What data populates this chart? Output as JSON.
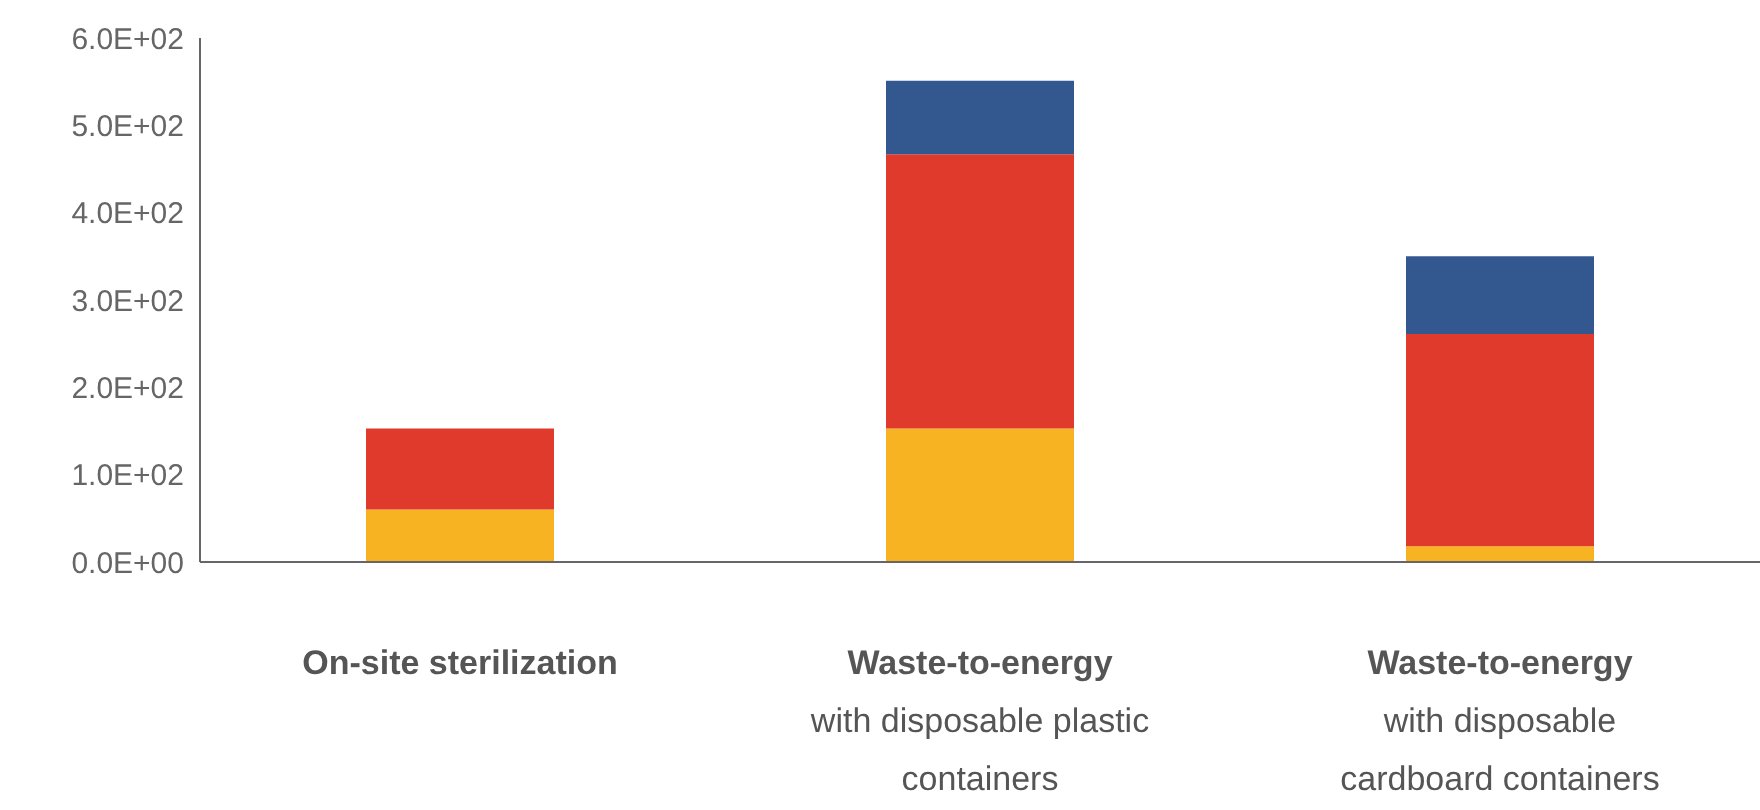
{
  "chart_data": {
    "type": "bar",
    "stacked": true,
    "categories": [
      "On-site sterilization",
      "Waste-to-energy\nwith disposable plastic\ncontainers",
      "Waste-to-energy\nwith disposable\ncardboard containers"
    ],
    "series": [
      {
        "color": "#f8b323",
        "values": [
          60,
          153,
          18
        ]
      },
      {
        "color": "#e03a2d",
        "values": [
          93,
          314,
          243
        ]
      },
      {
        "color": "#335890",
        "values": [
          null,
          84,
          89
        ]
      }
    ],
    "ylim": [
      0,
      600
    ],
    "yticks": [
      {
        "value": 0,
        "label": "0.0E+00"
      },
      {
        "value": 100,
        "label": "1.0E+02"
      },
      {
        "value": 200,
        "label": "2.0E+02"
      },
      {
        "value": 300,
        "label": "3.0E+02"
      },
      {
        "value": 400,
        "label": "4.0E+02"
      },
      {
        "value": 500,
        "label": "5.0E+02"
      },
      {
        "value": 600,
        "label": "6.0E+02"
      }
    ],
    "grid": false,
    "legend": false
  }
}
